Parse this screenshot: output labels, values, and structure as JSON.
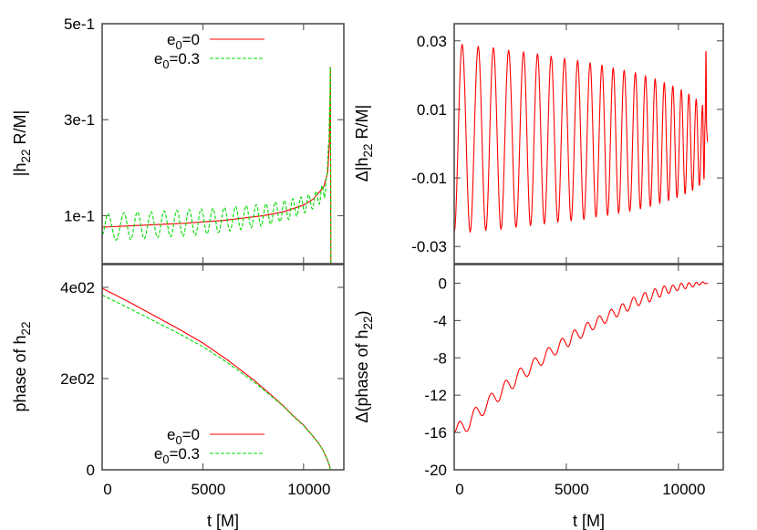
{
  "colors": {
    "e0_0": "#ff0000",
    "e0_0.3": "#00dd00",
    "frame": "#444444"
  },
  "chart_data": [
    {
      "type": "line",
      "panel": "top-left",
      "ylabel": {
        "pre": "|h",
        "sub": "22",
        "post": " R/M|"
      },
      "xlabel": null,
      "xlim": [
        0,
        12000
      ],
      "ylim": [
        0,
        0.5
      ],
      "xticks": [
        0,
        5000,
        10000
      ],
      "xtick_labels_shown": false,
      "yticks": [
        {
          "v": 0.1,
          "label": "1e-1"
        },
        {
          "v": 0.3,
          "label": "3e-1"
        },
        {
          "v": 0.5,
          "label": "5e-1"
        }
      ],
      "legend": {
        "placement": "top",
        "entries": [
          {
            "pre": "e",
            "sub": "0",
            "post": "=0",
            "series": 0
          },
          {
            "pre": "e",
            "sub": "0",
            "post": "=0.3",
            "series": 1
          }
        ]
      },
      "series": [
        {
          "name": "e0=0",
          "color": "#ff0000",
          "dash": "solid",
          "interp": "linear",
          "points": [
            [
              0,
              0.076
            ],
            [
              2000,
              0.08
            ],
            [
              4000,
              0.084
            ],
            [
              6000,
              0.09
            ],
            [
              8000,
              0.1
            ],
            [
              9000,
              0.108
            ],
            [
              10000,
              0.122
            ],
            [
              10500,
              0.135
            ],
            [
              11000,
              0.16
            ],
            [
              11200,
              0.19
            ],
            [
              11280,
              0.25
            ],
            [
              11320,
              0.35
            ],
            [
              11335,
              0.41
            ],
            [
              11345,
              0.2
            ],
            [
              11355,
              0.0
            ]
          ]
        },
        {
          "name": "e0=0.3",
          "color": "#00dd00",
          "dash": "dashed",
          "interp": "cosine",
          "points": [
            [
              0,
              0.06
            ],
            [
              287,
              0.104
            ],
            [
              687,
              0.049
            ],
            [
              1087,
              0.106
            ],
            [
              1419,
              0.05
            ],
            [
              1751,
              0.108
            ],
            [
              2090,
              0.052
            ],
            [
              2430,
              0.108
            ],
            [
              2755,
              0.054
            ],
            [
              3079,
              0.11
            ],
            [
              3396,
              0.056
            ],
            [
              3713,
              0.111
            ],
            [
              4015,
              0.057
            ],
            [
              4317,
              0.113
            ],
            [
              4619,
              0.059
            ],
            [
              4920,
              0.114
            ],
            [
              5207,
              0.062
            ],
            [
              5494,
              0.115
            ],
            [
              5781,
              0.065
            ],
            [
              6068,
              0.117
            ],
            [
              6347,
              0.068
            ],
            [
              6626,
              0.119
            ],
            [
              6890,
              0.071
            ],
            [
              7154,
              0.121
            ],
            [
              7403,
              0.075
            ],
            [
              7652,
              0.123
            ],
            [
              7894,
              0.078
            ],
            [
              8135,
              0.125
            ],
            [
              8369,
              0.082
            ],
            [
              8603,
              0.129
            ],
            [
              8830,
              0.087
            ],
            [
              9056,
              0.132
            ],
            [
              9260,
              0.092
            ],
            [
              9463,
              0.135
            ],
            [
              9667,
              0.099
            ],
            [
              9871,
              0.139
            ],
            [
              10060,
              0.106
            ],
            [
              10249,
              0.144
            ],
            [
              10438,
              0.114
            ],
            [
              10626,
              0.151
            ],
            [
              10777,
              0.124
            ],
            [
              10927,
              0.163
            ],
            [
              11040,
              0.138
            ],
            [
              11154,
              0.184
            ],
            [
              11250,
              0.25
            ],
            [
              11300,
              0.33
            ],
            [
              11330,
              0.41
            ],
            [
              11345,
              0.2
            ],
            [
              11360,
              0.0
            ]
          ]
        }
      ]
    },
    {
      "type": "line",
      "panel": "top-right",
      "ylabel": {
        "pre": "Δ|h",
        "sub": "22",
        "post": " R/M|"
      },
      "xlabel": null,
      "xlim": [
        0,
        12000
      ],
      "ylim": [
        -0.035,
        0.035
      ],
      "xticks": [
        0,
        5000,
        10000
      ],
      "xtick_labels_shown": false,
      "yticks": [
        {
          "v": -0.03,
          "label": "-0.03"
        },
        {
          "v": -0.01,
          "label": "-0.01"
        },
        {
          "v": 0.01,
          "label": "0.01"
        },
        {
          "v": 0.03,
          "label": "0.03"
        }
      ],
      "series": [
        {
          "color": "#ff0000",
          "dash": "solid",
          "interp": "cosine",
          "points": [
            [
              0,
              -0.026
            ],
            [
              353,
              0.0291
            ],
            [
              712,
              -0.0259
            ],
            [
              1071,
              0.0285
            ],
            [
              1410,
              -0.0254
            ],
            [
              1749,
              0.0281
            ],
            [
              2088,
              -0.0251
            ],
            [
              2427,
              0.0274
            ],
            [
              2760,
              -0.0245
            ],
            [
              3092,
              0.0269
            ],
            [
              3404,
              -0.024
            ],
            [
              3716,
              0.0263
            ],
            [
              4021,
              -0.0235
            ],
            [
              4326,
              0.0256
            ],
            [
              4624,
              -0.023
            ],
            [
              4922,
              0.025
            ],
            [
              5214,
              -0.0226
            ],
            [
              5505,
              0.0244
            ],
            [
              5783,
              -0.0222
            ],
            [
              6061,
              0.0237
            ],
            [
              6326,
              -0.0215
            ],
            [
              6590,
              0.023
            ],
            [
              6841,
              -0.021
            ],
            [
              7092,
              0.0222
            ],
            [
              7336,
              -0.0204
            ],
            [
              7580,
              0.0215
            ],
            [
              7831,
              -0.0198
            ],
            [
              8082,
              0.0208
            ],
            [
              8306,
              -0.0191
            ],
            [
              8530,
              0.0199
            ],
            [
              8747,
              -0.0184
            ],
            [
              8964,
              0.019
            ],
            [
              9167,
              -0.0175
            ],
            [
              9370,
              0.0179
            ],
            [
              9560,
              -0.0167
            ],
            [
              9750,
              0.0169
            ],
            [
              9940,
              -0.0158
            ],
            [
              10129,
              0.0158
            ],
            [
              10298,
              -0.0147
            ],
            [
              10467,
              0.0146
            ],
            [
              10630,
              -0.0137
            ],
            [
              10793,
              0.0131
            ],
            [
              10936,
              -0.0123
            ],
            [
              11078,
              0.0113
            ],
            [
              11140,
              -0.0104
            ],
            [
              11190,
              0.006
            ],
            [
              11230,
              0.027
            ],
            [
              11260,
              0.004
            ],
            [
              11300,
              0.0005
            ]
          ]
        }
      ]
    },
    {
      "type": "line",
      "panel": "bottom-left",
      "ylabel": {
        "pre": "phase of h",
        "sub": "22",
        "post": ""
      },
      "xlabel": "t [M]",
      "xlim": [
        0,
        12000
      ],
      "ylim": [
        0,
        450
      ],
      "xticks": [
        0,
        5000,
        10000
      ],
      "xtick_labels_shown": true,
      "yticks": [
        {
          "v": 0,
          "label": "0"
        },
        {
          "v": 200,
          "label": "2e02"
        },
        {
          "v": 400,
          "label": "4e02"
        }
      ],
      "legend": {
        "placement": "bottom",
        "entries": [
          {
            "pre": "e",
            "sub": "0",
            "post": "=0",
            "series": 0
          },
          {
            "pre": "e",
            "sub": "0",
            "post": "=0.3",
            "series": 1
          }
        ]
      },
      "series": [
        {
          "name": "e0=0",
          "color": "#ff0000",
          "dash": "solid",
          "interp": "linear",
          "points": [
            [
              0,
              398
            ],
            [
              1250,
              370
            ],
            [
              2500,
              340
            ],
            [
              3750,
              310
            ],
            [
              5000,
              278
            ],
            [
              6250,
              240
            ],
            [
              7500,
              198
            ],
            [
              8500,
              160
            ],
            [
              9000,
              140
            ],
            [
              9500,
              118
            ],
            [
              10000,
              98
            ],
            [
              10500,
              72
            ],
            [
              10800,
              55
            ],
            [
              11000,
              40
            ],
            [
              11200,
              20
            ],
            [
              11300,
              7
            ],
            [
              11330,
              0
            ]
          ]
        },
        {
          "name": "e0=0.3",
          "color": "#00dd00",
          "dash": "dashed",
          "interp": "linear",
          "points": [
            [
              0,
              383
            ],
            [
              1250,
              356
            ],
            [
              2500,
              328
            ],
            [
              3750,
              300
            ],
            [
              5000,
              270
            ],
            [
              6250,
              234
            ],
            [
              7500,
              194
            ],
            [
              8500,
              158
            ],
            [
              9000,
              139
            ],
            [
              9500,
              117
            ],
            [
              10000,
              97
            ],
            [
              10500,
              72
            ],
            [
              10800,
              55
            ],
            [
              11000,
              40
            ],
            [
              11200,
              20
            ],
            [
              11300,
              7
            ],
            [
              11330,
              0
            ]
          ]
        }
      ]
    },
    {
      "type": "line",
      "panel": "bottom-right",
      "ylabel": {
        "pre": "Δ(phase of h",
        "sub": "22",
        "post": ")"
      },
      "xlabel": "t [M]",
      "xlim": [
        0,
        12000
      ],
      "ylim": [
        -20,
        2
      ],
      "xticks": [
        0,
        5000,
        10000
      ],
      "xtick_labels_shown": true,
      "yticks": [
        {
          "v": -20,
          "label": "-20"
        },
        {
          "v": -16,
          "label": "-16"
        },
        {
          "v": -12,
          "label": "-12"
        },
        {
          "v": -8,
          "label": "-8"
        },
        {
          "v": -4,
          "label": "-4"
        },
        {
          "v": 0,
          "label": "0"
        }
      ],
      "series": [
        {
          "color": "#ff0000",
          "dash": "solid",
          "interp": "cosine",
          "points": [
            [
              0,
              -16.0
            ],
            [
              258,
              -14.8
            ],
            [
              560,
              -15.9
            ],
            [
              963,
              -13.3
            ],
            [
              1250,
              -14.2
            ],
            [
              1668,
              -11.8
            ],
            [
              1950,
              -12.7
            ],
            [
              2319,
              -10.4
            ],
            [
              2600,
              -11.3
            ],
            [
              2956,
              -9.1
            ],
            [
              3250,
              -10.0
            ],
            [
              3607,
              -8.0
            ],
            [
              3880,
              -8.8
            ],
            [
              4217,
              -6.9
            ],
            [
              4500,
              -7.7
            ],
            [
              4828,
              -5.9
            ],
            [
              5080,
              -6.8
            ],
            [
              5370,
              -5.0
            ],
            [
              5640,
              -5.9
            ],
            [
              5953,
              -4.2
            ],
            [
              6180,
              -5.0
            ],
            [
              6482,
              -3.5
            ],
            [
              6720,
              -4.3
            ],
            [
              7011,
              -2.8
            ],
            [
              7250,
              -3.6
            ],
            [
              7513,
              -2.2
            ],
            [
              7730,
              -3.0
            ],
            [
              8013,
              -1.5
            ],
            [
              8220,
              -2.4
            ],
            [
              8515,
              -1.0
            ],
            [
              8710,
              -2.0
            ],
            [
              8964,
              -0.6
            ],
            [
              9160,
              -1.5
            ],
            [
              9370,
              -0.3
            ],
            [
              9570,
              -1.1
            ],
            [
              9750,
              -0.2
            ],
            [
              9950,
              -0.8
            ],
            [
              10129,
              0.0
            ],
            [
              10310,
              -0.6
            ],
            [
              10467,
              0.05
            ],
            [
              10640,
              -0.4
            ],
            [
              10793,
              0.1
            ],
            [
              10940,
              -0.2
            ],
            [
              11078,
              0.15
            ],
            [
              11200,
              -0.05
            ],
            [
              11320,
              0.0
            ]
          ]
        }
      ]
    }
  ]
}
